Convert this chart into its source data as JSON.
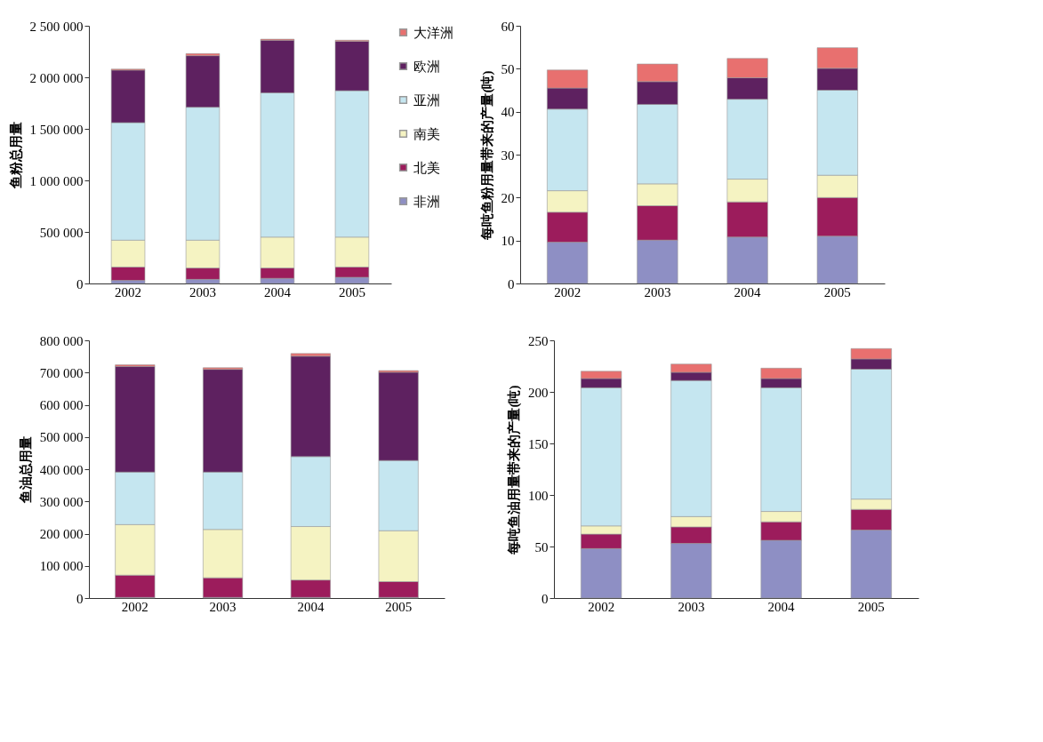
{
  "chart_data": [
    {
      "type": "bar",
      "stacked": true,
      "ylabel": "鱼粉总用量",
      "categories": [
        "2002",
        "2003",
        "2004",
        "2005"
      ],
      "ylim": [
        0,
        2500000
      ],
      "yticks": [
        0,
        {
          "value": 500000,
          "label": "500 000"
        },
        {
          "value": 1000000,
          "label": "1 000 000"
        },
        {
          "value": 1500000,
          "label": "1 500 000"
        },
        {
          "value": 2000000,
          "label": "2 000 000"
        },
        {
          "value": 2500000,
          "label": "2 500 000"
        }
      ],
      "legend": "right",
      "series": [
        {
          "name": "非洲",
          "color": "#8e8fc4",
          "values": [
            30000,
            40000,
            50000,
            60000
          ]
        },
        {
          "name": "北美",
          "color": "#9c1c5c",
          "values": [
            130000,
            110000,
            100000,
            100000
          ]
        },
        {
          "name": "南美",
          "color": "#f5f3c2",
          "values": [
            260000,
            270000,
            300000,
            290000
          ]
        },
        {
          "name": "亚洲",
          "color": "#c5e6f0",
          "values": [
            1140000,
            1290000,
            1400000,
            1420000
          ]
        },
        {
          "name": "欧洲",
          "color": "#5e2160",
          "values": [
            510000,
            500000,
            510000,
            480000
          ]
        },
        {
          "name": "大洋洲",
          "color": "#e8706f",
          "values": [
            10000,
            20000,
            10000,
            10000
          ]
        }
      ]
    },
    {
      "type": "bar",
      "stacked": true,
      "ylabel": "每吨鱼粉用量带来的产量(吨)",
      "categories": [
        "2002",
        "2003",
        "2004",
        "2005"
      ],
      "ylim": [
        0,
        60
      ],
      "yticks": [
        0,
        10,
        20,
        30,
        40,
        50,
        60
      ],
      "series": [
        {
          "color": "#8e8fc4",
          "values": [
            9.6,
            10.1,
            10.8,
            11.0
          ]
        },
        {
          "color": "#9c1c5c",
          "values": [
            7.0,
            8.0,
            8.2,
            9.0
          ]
        },
        {
          "color": "#f5f3c2",
          "values": [
            5.0,
            5.1,
            5.3,
            5.2
          ]
        },
        {
          "color": "#c5e6f0",
          "values": [
            19.0,
            18.5,
            18.6,
            19.8
          ]
        },
        {
          "color": "#5e2160",
          "values": [
            4.9,
            5.3,
            5.0,
            5.1
          ]
        },
        {
          "color": "#e8706f",
          "values": [
            4.2,
            4.1,
            4.5,
            4.8
          ]
        }
      ]
    },
    {
      "type": "bar",
      "stacked": true,
      "ylabel": "鱼油总用量",
      "categories": [
        "2002",
        "2003",
        "2004",
        "2005"
      ],
      "ylim": [
        0,
        800000
      ],
      "yticks": [
        0,
        {
          "value": 100000,
          "label": "100 000"
        },
        {
          "value": 200000,
          "label": "200 000"
        },
        {
          "value": 300000,
          "label": "300 000"
        },
        {
          "value": 400000,
          "label": "400 000"
        },
        {
          "value": 500000,
          "label": "500 000"
        },
        {
          "value": 600000,
          "label": "600 000"
        },
        {
          "value": 700000,
          "label": "700 000"
        },
        {
          "value": 800000,
          "label": "800 000"
        }
      ],
      "series": [
        {
          "color": "#8e8fc4",
          "values": [
            2000,
            2000,
            2000,
            2000
          ]
        },
        {
          "color": "#9c1c5c",
          "values": [
            69000,
            61000,
            54000,
            49000
          ]
        },
        {
          "color": "#f5f3c2",
          "values": [
            157000,
            150000,
            166000,
            158000
          ]
        },
        {
          "color": "#c5e6f0",
          "values": [
            163000,
            178000,
            217000,
            218000
          ]
        },
        {
          "color": "#5e2160",
          "values": [
            328000,
            319000,
            312000,
            274000
          ]
        },
        {
          "color": "#e8706f",
          "values": [
            5000,
            5000,
            8000,
            5000
          ]
        }
      ]
    },
    {
      "type": "bar",
      "stacked": true,
      "ylabel": "每吨鱼油用量带来的产量(吨)",
      "categories": [
        "2002",
        "2003",
        "2004",
        "2005"
      ],
      "ylim": [
        0,
        250
      ],
      "yticks": [
        0,
        50,
        100,
        150,
        200,
        250
      ],
      "series": [
        {
          "color": "#8e8fc4",
          "values": [
            48,
            53,
            56,
            66
          ]
        },
        {
          "color": "#9c1c5c",
          "values": [
            14,
            16,
            18,
            20
          ]
        },
        {
          "color": "#f5f3c2",
          "values": [
            8,
            10,
            10,
            10
          ]
        },
        {
          "color": "#c5e6f0",
          "values": [
            134,
            132,
            120,
            126
          ]
        },
        {
          "color": "#5e2160",
          "values": [
            9,
            8,
            9,
            10
          ]
        },
        {
          "color": "#e8706f",
          "values": [
            7,
            8,
            10,
            10
          ]
        }
      ]
    }
  ]
}
